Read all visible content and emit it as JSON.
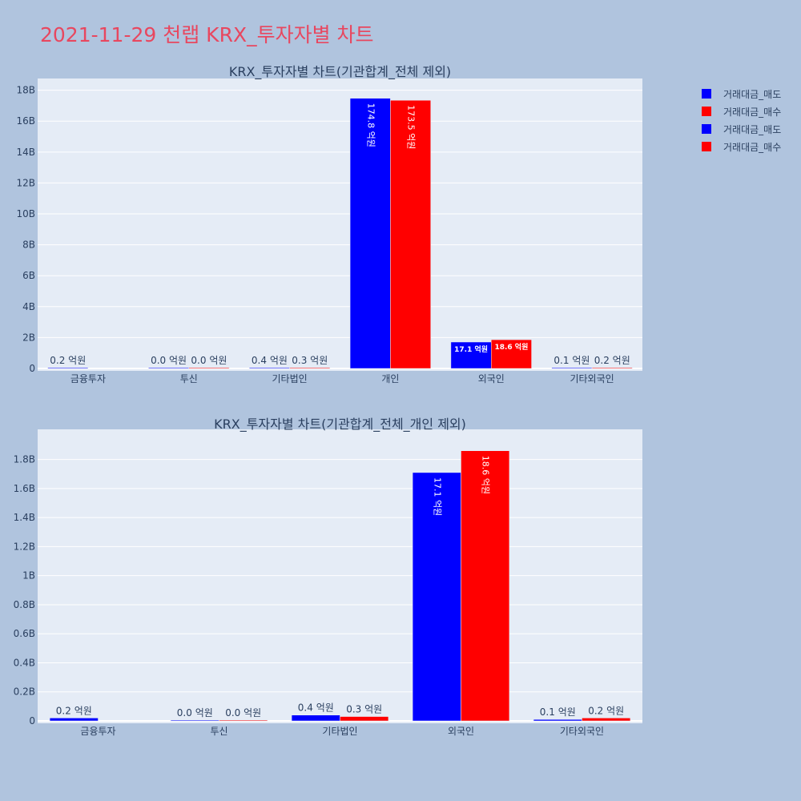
{
  "page_title": "2021-11-29 천랩 KRX_투자자별 차트",
  "colors": {
    "sell": "#0000ff",
    "buy": "#ff0000",
    "plot_bg": "#e5ecf6",
    "paper_bg": "#b0c4de",
    "title": "#e8475f"
  },
  "legend": [
    {
      "label": "거래대금_매도",
      "color": "#0000ff"
    },
    {
      "label": "거래대금_매수",
      "color": "#ff0000"
    },
    {
      "label": "거래대금_매도",
      "color": "#0000ff"
    },
    {
      "label": "거래대금_매수",
      "color": "#ff0000"
    }
  ],
  "chart_data": [
    {
      "type": "bar",
      "title": "KRX_투자자별 차트(기관합계_전체 제외)",
      "categories": [
        "금융투자",
        "투신",
        "기타법인",
        "개인",
        "외국인",
        "기타외국인"
      ],
      "series": [
        {
          "name": "거래대금_매도",
          "values": [
            20000000,
            3000000,
            40000000,
            17480000000,
            1710000000,
            10000000
          ],
          "labels": [
            "0.2 억원",
            "0.0 억원",
            "0.4 억원",
            "174.8 억원",
            "17.1 억원",
            "0.1 억원"
          ]
        },
        {
          "name": "거래대금_매수",
          "values": [
            0,
            3000000,
            30000000,
            17350000000,
            1860000000,
            20000000
          ],
          "labels": [
            "",
            "0.0 억원",
            "0.3 억원",
            "173.5 억원",
            "18.6 억원",
            "0.2 억원"
          ]
        }
      ],
      "ylim": [
        0,
        18500000000
      ],
      "yticks": [
        0,
        2000000000,
        4000000000,
        6000000000,
        8000000000,
        10000000000,
        12000000000,
        14000000000,
        16000000000,
        18000000000
      ],
      "ytick_labels": [
        "0",
        "2B",
        "4B",
        "6B",
        "8B",
        "10B",
        "12B",
        "14B",
        "16B",
        "18B"
      ]
    },
    {
      "type": "bar",
      "title": "KRX_투자자별 차트(기관합계_전체_개인 제외)",
      "categories": [
        "금융투자",
        "투신",
        "기타법인",
        "외국인",
        "기타외국인"
      ],
      "series": [
        {
          "name": "거래대금_매도",
          "values": [
            20000000,
            3000000,
            40000000,
            1710000000,
            10000000
          ],
          "labels": [
            "0.2 억원",
            "0.0 억원",
            "0.4 억원",
            "17.1 억원",
            "0.1 억원"
          ]
        },
        {
          "name": "거래대금_매수",
          "values": [
            0,
            3000000,
            30000000,
            1860000000,
            20000000
          ],
          "labels": [
            "",
            "0.0 억원",
            "0.3 억원",
            "18.6 억원",
            "0.2 억원"
          ]
        }
      ],
      "ylim": [
        0,
        1980000000
      ],
      "yticks": [
        0,
        200000000,
        400000000,
        600000000,
        800000000,
        1000000000,
        1200000000,
        1400000000,
        1600000000,
        1800000000
      ],
      "ytick_labels": [
        "0",
        "0.2B",
        "0.4B",
        "0.6B",
        "0.8B",
        "1B",
        "1.2B",
        "1.4B",
        "1.6B",
        "1.8B"
      ]
    }
  ]
}
